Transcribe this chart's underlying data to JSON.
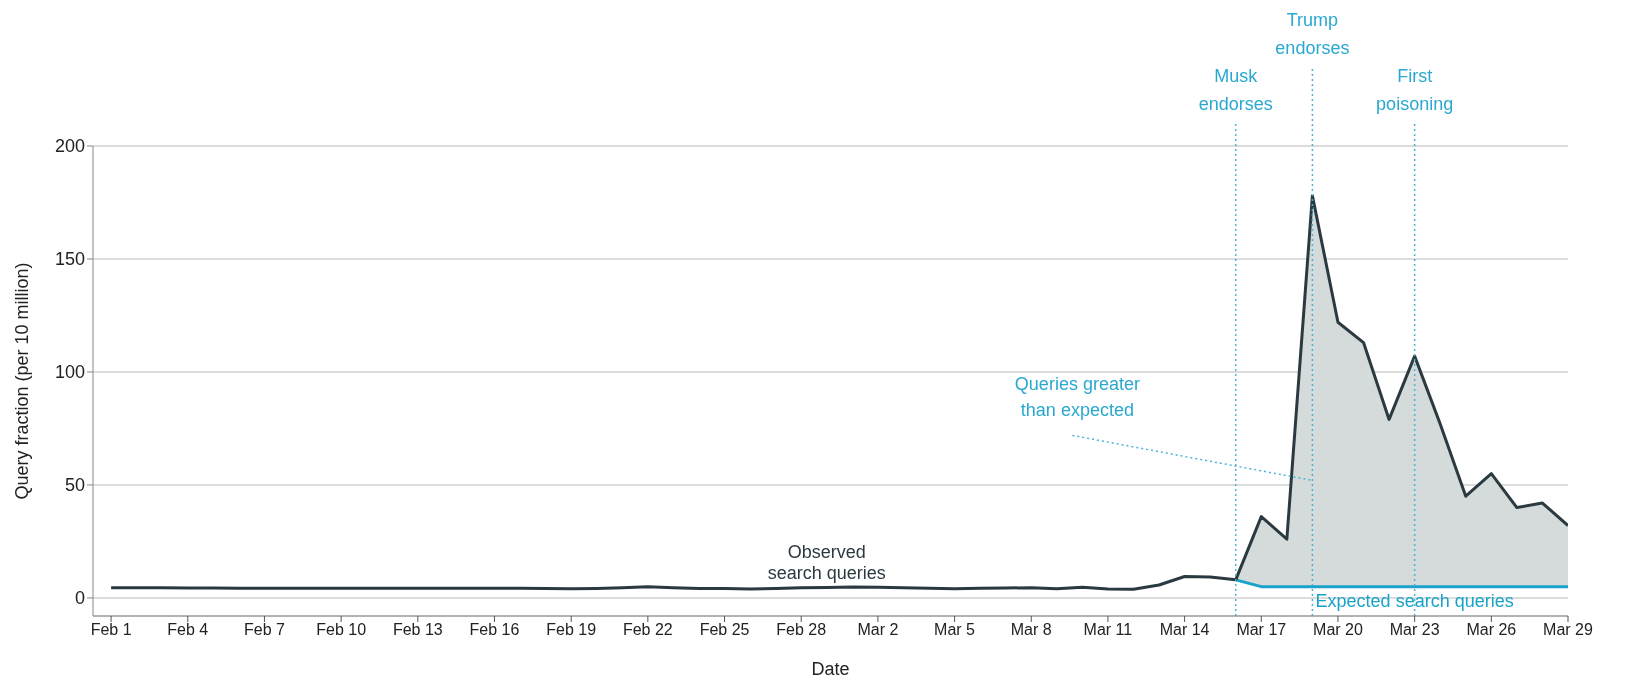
{
  "chart_data": {
    "type": "line",
    "xlabel": "Date",
    "ylabel": "Query fraction (per 10 million)",
    "xlim": [
      "--01-31T07:00",
      "--03-29"
    ],
    "ylim": [
      -8,
      200
    ],
    "yticks": [
      0,
      50,
      100,
      150,
      200
    ],
    "xticks": [
      {
        "value": "--02-01",
        "label": "Feb 1"
      },
      {
        "value": "--02-04",
        "label": "Feb 4"
      },
      {
        "value": "--02-07",
        "label": "Feb 7"
      },
      {
        "value": "--02-10",
        "label": "Feb 10"
      },
      {
        "value": "--02-13",
        "label": "Feb 13"
      },
      {
        "value": "--02-16",
        "label": "Feb 16"
      },
      {
        "value": "--02-19",
        "label": "Feb 19"
      },
      {
        "value": "--02-22",
        "label": "Feb 22"
      },
      {
        "value": "--02-25",
        "label": "Feb 25"
      },
      {
        "value": "--02-28",
        "label": "Feb 28"
      },
      {
        "value": "--03-02",
        "label": "Mar 2"
      },
      {
        "value": "--03-05",
        "label": "Mar 5"
      },
      {
        "value": "--03-08",
        "label": "Mar 8"
      },
      {
        "value": "--03-11",
        "label": "Mar 11"
      },
      {
        "value": "--03-14",
        "label": "Mar 14"
      },
      {
        "value": "--03-17",
        "label": "Mar 17"
      },
      {
        "value": "--03-20",
        "label": "Mar 20"
      },
      {
        "value": "--03-23",
        "label": "Mar 23"
      },
      {
        "value": "--03-26",
        "label": "Mar 26"
      },
      {
        "value": "--03-29",
        "label": "Mar 29"
      }
    ],
    "grid": "y",
    "legend": false,
    "marker": "none",
    "line_style": "solid",
    "series": [
      {
        "name": "Observed search queries",
        "color": "#2b3a40",
        "x": [
          "--02-01",
          "--02-02",
          "--02-03",
          "--02-04",
          "--02-05",
          "--02-06",
          "--02-07",
          "--02-08",
          "--02-09",
          "--02-10",
          "--02-11",
          "--02-12",
          "--02-13",
          "--02-14",
          "--02-15",
          "--02-16",
          "--02-17",
          "--02-18",
          "--02-19",
          "--02-20",
          "--02-21",
          "--02-22",
          "--02-23",
          "--02-24",
          "--02-25",
          "--02-26",
          "--02-27",
          "--02-28",
          "--02-29",
          "--03-01",
          "--03-02",
          "--03-03",
          "--03-04",
          "--03-05",
          "--03-06",
          "--03-07",
          "--03-08",
          "--03-09",
          "--03-10",
          "--03-11",
          "--03-12",
          "--03-13",
          "--03-14",
          "--03-15",
          "--03-16",
          "--03-17",
          "--03-18",
          "--03-19",
          "--03-20",
          "--03-21",
          "--03-22",
          "--03-23",
          "--03-24",
          "--03-25",
          "--03-26",
          "--03-27",
          "--03-28",
          "--03-29"
        ],
        "values": [
          4.5,
          4.5,
          4.5,
          4.4,
          4.4,
          4.3,
          4.3,
          4.3,
          4.3,
          4.3,
          4.3,
          4.3,
          4.3,
          4.3,
          4.3,
          4.3,
          4.3,
          4.2,
          4.1,
          4.2,
          4.5,
          4.9,
          4.5,
          4.2,
          4.2,
          3.9,
          4.2,
          4.5,
          4.6,
          4.8,
          4.7,
          4.5,
          4.3,
          4.1,
          4.3,
          4.4,
          4.5,
          4.1,
          4.7,
          3.9,
          3.8,
          5.7,
          9.5,
          9.3,
          8,
          36,
          26,
          178,
          122,
          113,
          79,
          107,
          77,
          45,
          55,
          40,
          42,
          32
        ]
      },
      {
        "name": "Expected search queries",
        "color": "#1aa3c9",
        "x": [
          "--03-16",
          "--03-17",
          "--03-18",
          "--03-19",
          "--03-20",
          "--03-21",
          "--03-22",
          "--03-23",
          "--03-24",
          "--03-25",
          "--03-26",
          "--03-27",
          "--03-28",
          "--03-29"
        ],
        "values": [
          8,
          5,
          5,
          5,
          5,
          5,
          5,
          5,
          5,
          5,
          5,
          5,
          5,
          5
        ],
        "lower": [
          8,
          5,
          5,
          5,
          5,
          5,
          5,
          5,
          5,
          5,
          5,
          5,
          5,
          5
        ],
        "upper": [
          8,
          36,
          26,
          178,
          122,
          113,
          79,
          107,
          77,
          45,
          55,
          40,
          42,
          32
        ]
      }
    ],
    "ref_lines": [
      {
        "axis": "x",
        "value": "--03-16",
        "label": "Musk endorses",
        "color": "#4ab3d6",
        "line_style": "dotted"
      },
      {
        "axis": "x",
        "value": "--03-19",
        "label": "Trump endorses",
        "color": "#4ab3d6",
        "line_style": "dotted"
      },
      {
        "axis": "x",
        "value": "--03-23",
        "label": "First poisoning",
        "color": "#4ab3d6",
        "line_style": "dotted"
      }
    ],
    "annotations": [
      {
        "text": "Queries greater than expected",
        "x": "--03-19",
        "y": 52
      }
    ]
  }
}
